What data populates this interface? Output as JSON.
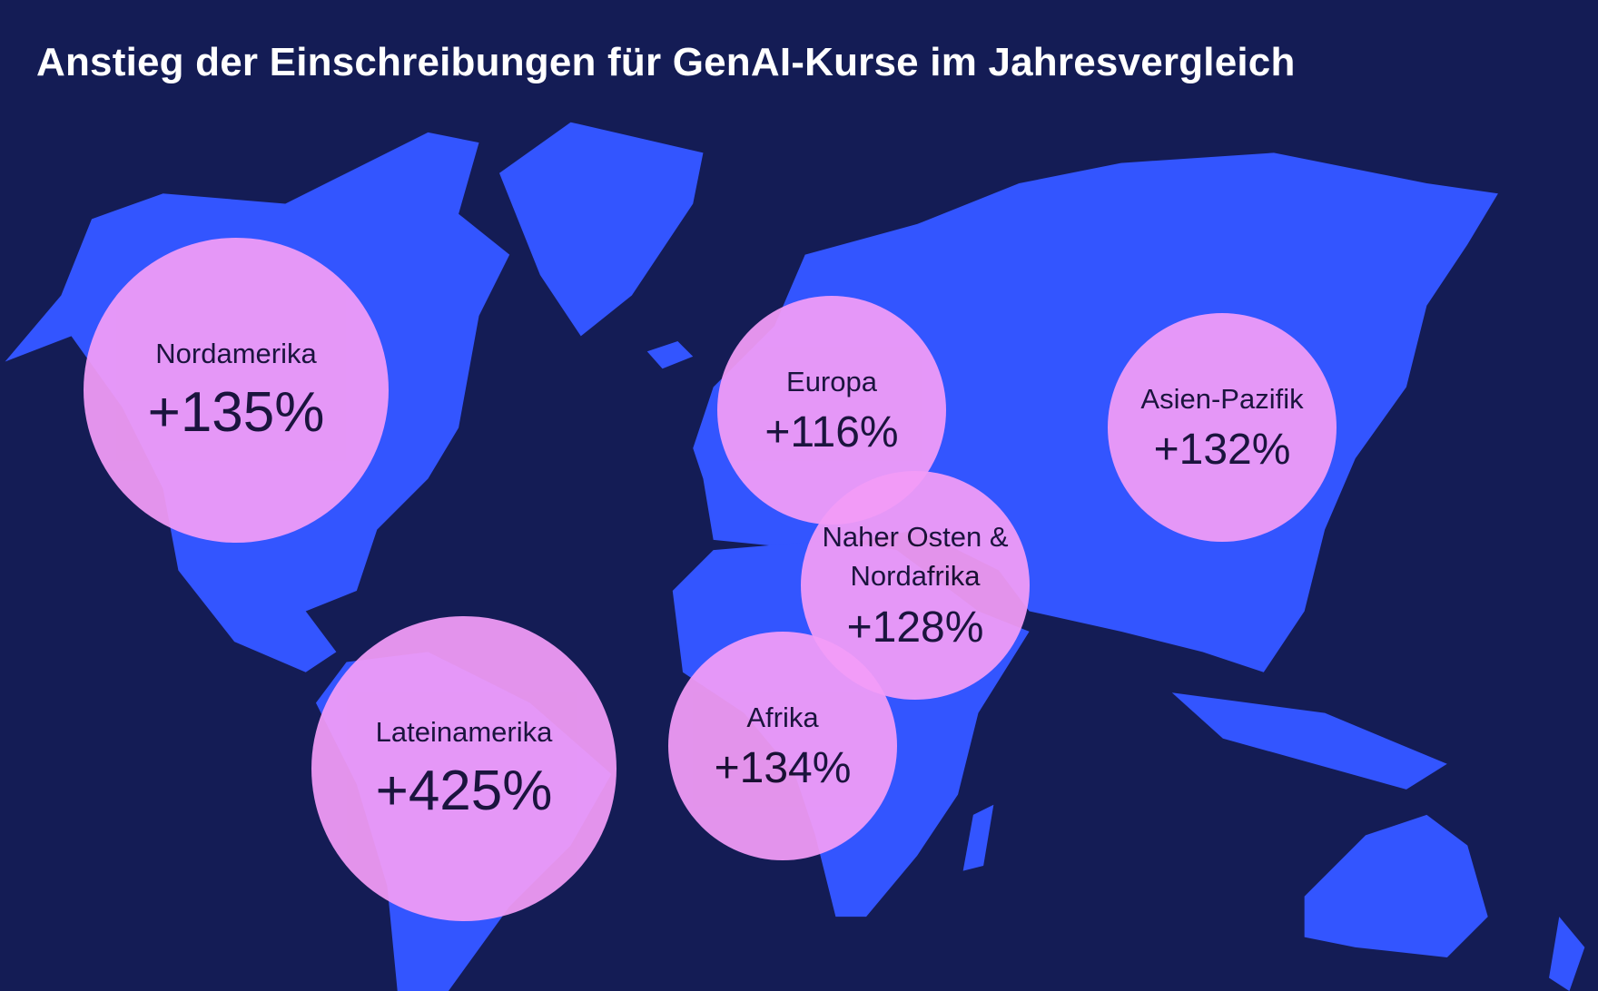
{
  "chart_data": {
    "type": "bubble-map",
    "title": "Anstieg der Einschreibungen für GenAI-Kurse im Jahresvergleich",
    "categories": [
      "Nordamerika",
      "Europa",
      "Asien-Pazifik",
      "Naher Osten & Nordafrika",
      "Lateinamerika",
      "Afrika"
    ],
    "values": [
      135,
      116,
      132,
      128,
      425,
      134
    ],
    "value_labels": [
      "+135%",
      "+116%",
      "+132%",
      "+128%",
      "+425%",
      "+134%"
    ],
    "color": "#f39cf7"
  }
}
